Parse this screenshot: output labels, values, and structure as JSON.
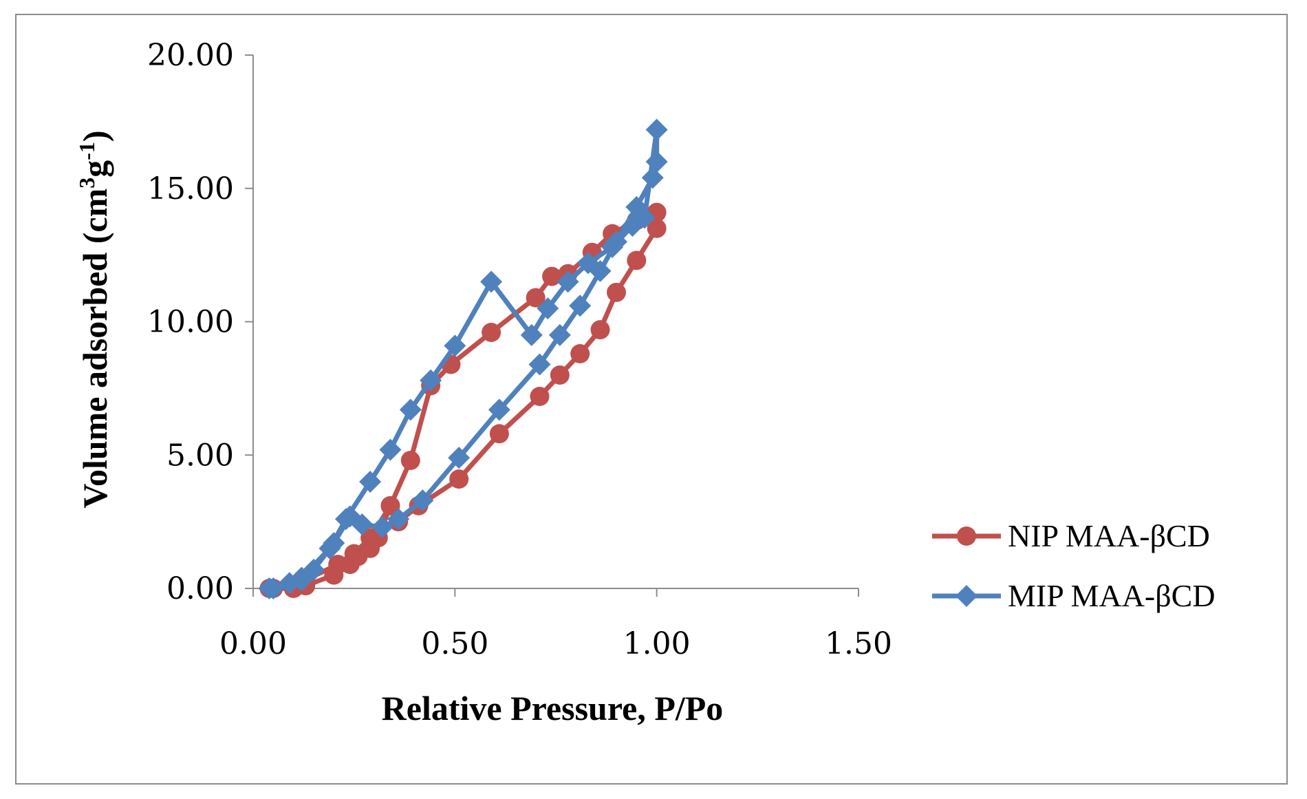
{
  "chart_data": {
    "type": "line",
    "title": "",
    "xlabel": "Relative Pressure, P/Po",
    "ylabel": {
      "prefix": "Volume adsorbed (cm",
      "sup1": "3",
      "mid": "g",
      "sup2": "-1",
      "suffix": ")"
    },
    "xlim": [
      0,
      1.5
    ],
    "ylim": [
      0,
      20
    ],
    "x_ticks": [
      "0.00",
      "0.50",
      "1.00",
      "1.50"
    ],
    "y_ticks": [
      "0.00",
      "5.00",
      "10.00",
      "15.00",
      "20.00"
    ],
    "legend_position": "right",
    "series": [
      {
        "name": "NIP MAA-βCD",
        "color": "#C0504D",
        "marker": "circle",
        "points": [
          [
            0.04,
            0.0
          ],
          [
            0.1,
            0.0
          ],
          [
            0.13,
            0.1
          ],
          [
            0.2,
            0.5
          ],
          [
            0.24,
            0.9
          ],
          [
            0.26,
            1.2
          ],
          [
            0.29,
            1.5
          ],
          [
            0.31,
            1.9
          ],
          [
            0.34,
            3.1
          ],
          [
            0.36,
            2.5
          ],
          [
            0.41,
            3.1
          ],
          [
            0.51,
            4.1
          ],
          [
            0.61,
            5.8
          ],
          [
            0.71,
            7.2
          ],
          [
            0.76,
            8.0
          ],
          [
            0.81,
            8.8
          ],
          [
            0.86,
            9.7
          ],
          [
            0.9,
            11.1
          ],
          [
            0.95,
            12.3
          ],
          [
            1.0,
            13.5
          ],
          [
            1.0,
            14.1
          ],
          [
            0.95,
            13.8
          ],
          [
            0.89,
            13.3
          ],
          [
            0.84,
            12.6
          ],
          [
            0.78,
            11.8
          ],
          [
            0.74,
            11.7
          ],
          [
            0.7,
            10.9
          ],
          [
            0.59,
            9.6
          ],
          [
            0.49,
            8.4
          ],
          [
            0.44,
            7.6
          ],
          [
            0.39,
            4.8
          ],
          [
            0.34,
            3.1
          ],
          [
            0.29,
            1.9
          ],
          [
            0.25,
            1.3
          ],
          [
            0.21,
            0.9
          ],
          [
            0.1,
            0.1
          ],
          [
            0.05,
            0.0
          ]
        ]
      },
      {
        "name": "MIP MAA-βCD",
        "color": "#4F81BD",
        "marker": "diamond",
        "points": [
          [
            0.04,
            0.0
          ],
          [
            0.09,
            0.2
          ],
          [
            0.12,
            0.3
          ],
          [
            0.15,
            0.7
          ],
          [
            0.2,
            1.7
          ],
          [
            0.24,
            2.7
          ],
          [
            0.27,
            2.4
          ],
          [
            0.32,
            2.3
          ],
          [
            0.36,
            2.6
          ],
          [
            0.42,
            3.3
          ],
          [
            0.51,
            4.9
          ],
          [
            0.61,
            6.7
          ],
          [
            0.71,
            8.4
          ],
          [
            0.76,
            9.5
          ],
          [
            0.81,
            10.6
          ],
          [
            0.86,
            11.9
          ],
          [
            0.9,
            13.0
          ],
          [
            0.95,
            14.3
          ],
          [
            0.99,
            15.4
          ],
          [
            1.0,
            16.0
          ],
          [
            1.0,
            17.2
          ],
          [
            0.97,
            13.9
          ],
          [
            0.94,
            13.6
          ],
          [
            0.89,
            12.8
          ],
          [
            0.83,
            12.2
          ],
          [
            0.78,
            11.5
          ],
          [
            0.73,
            10.5
          ],
          [
            0.69,
            9.5
          ],
          [
            0.59,
            11.5
          ],
          [
            0.5,
            9.1
          ],
          [
            0.44,
            7.8
          ],
          [
            0.39,
            6.7
          ],
          [
            0.34,
            5.2
          ],
          [
            0.29,
            4.0
          ],
          [
            0.23,
            2.6
          ],
          [
            0.19,
            1.5
          ],
          [
            0.12,
            0.4
          ],
          [
            0.05,
            0.0
          ]
        ]
      }
    ]
  }
}
